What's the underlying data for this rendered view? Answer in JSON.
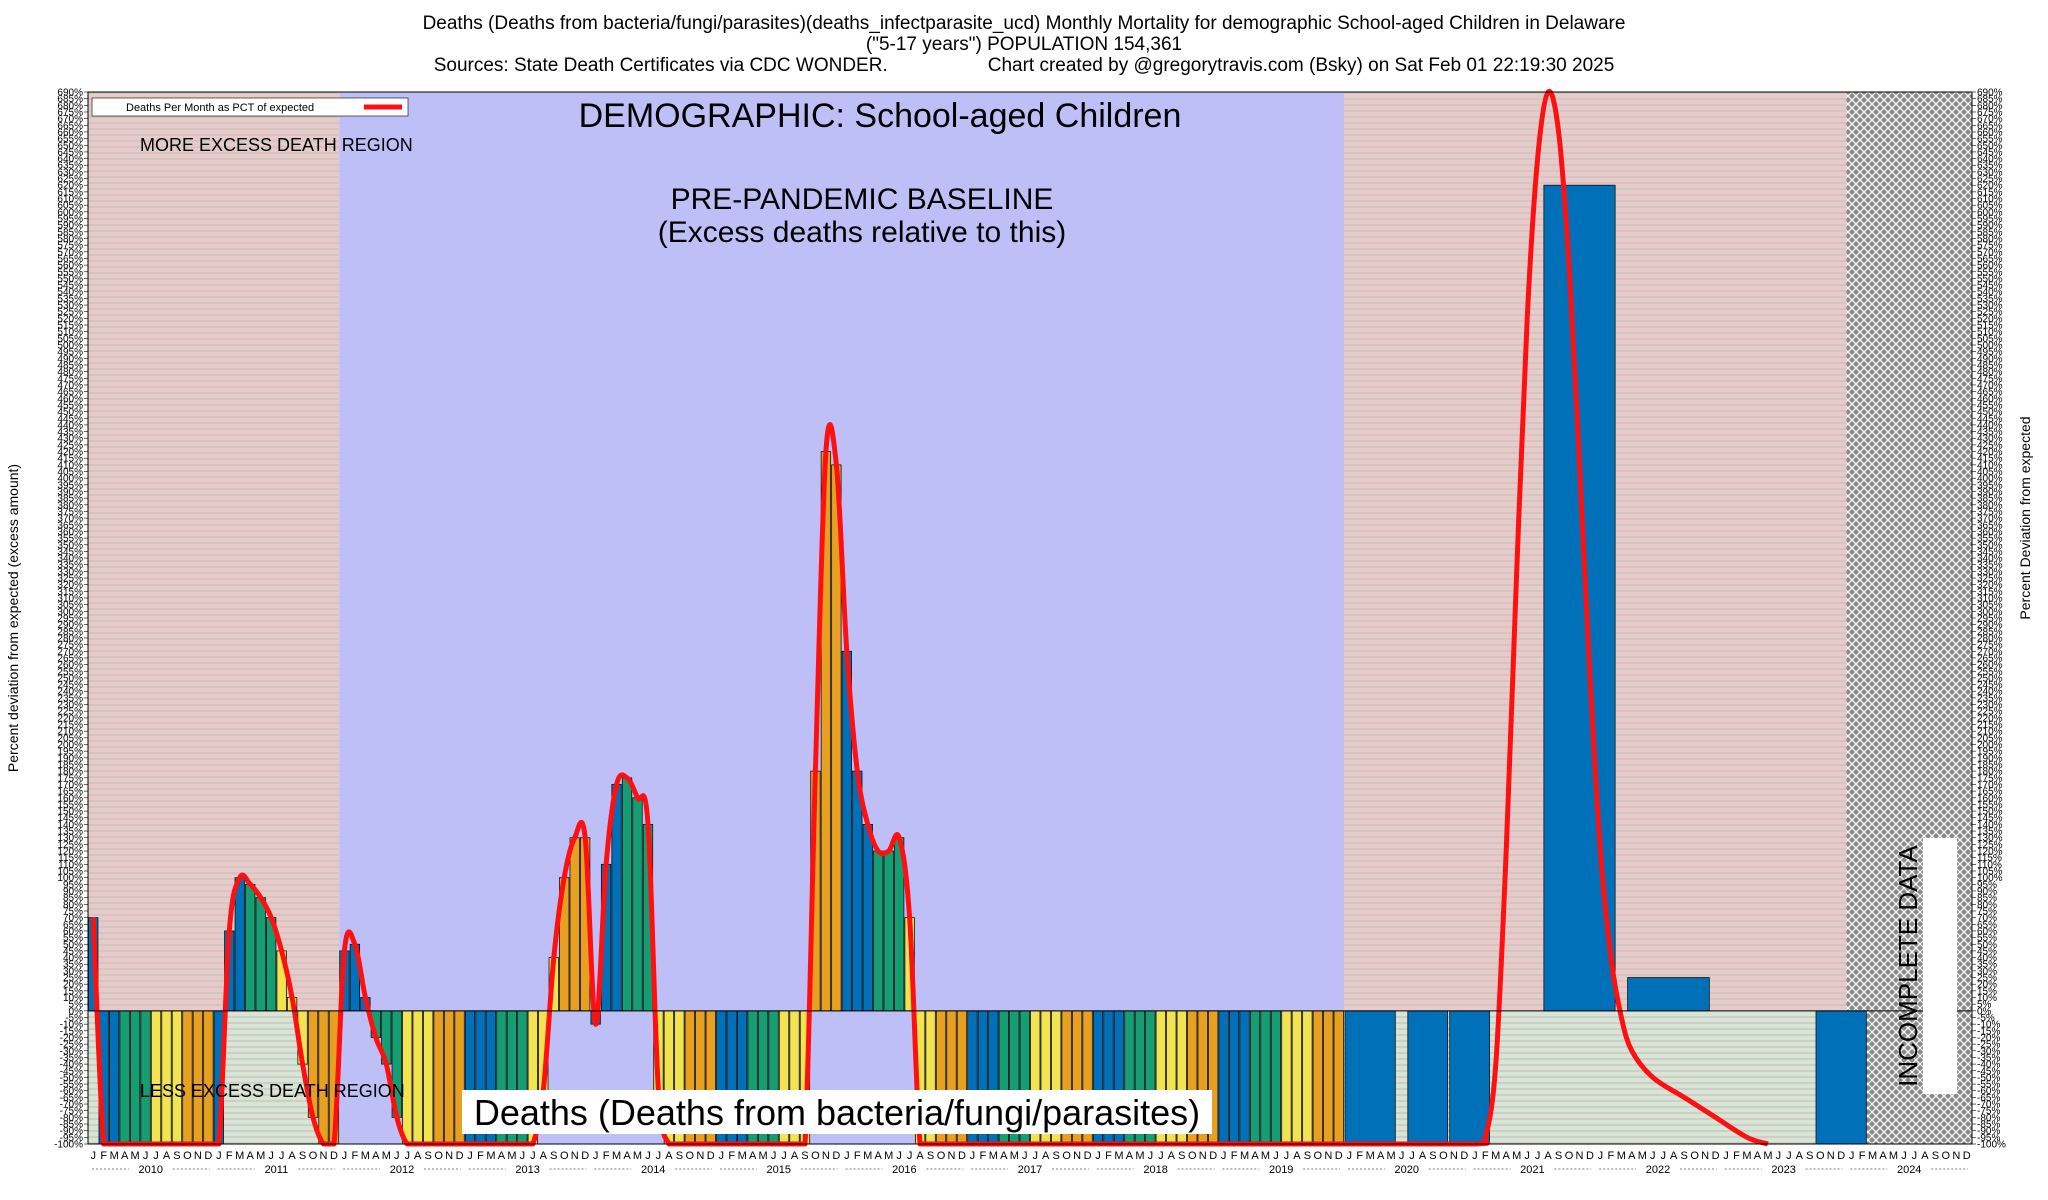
{
  "chart_data": {
    "type": "bar",
    "title_line1": "Deaths (Deaths from bacteria/fungi/parasites)(deaths_infectparasite_ucd) Monthly Mortality for demographic School-aged Children in Delaware",
    "title_line2": "(\"5-17 years\") POPULATION 154,361",
    "sources": "Sources: State Death Certificates via CDC WONDER.",
    "credit": "Chart created by @gregorytravis.com (Bsky) on Sat Feb 01 22:19:30 2025",
    "ylabel_left": "Percent deviation from expected (excess amount)",
    "ylabel_right": "Percent Deviation from expected",
    "legend_label": "Deaths Per Month as PCT of expected",
    "demographic_label": "DEMOGRAPHIC: School-aged Children",
    "more_region_label": "MORE EXCESS DEATH REGION",
    "less_region_label": "LESS EXCESS DEATH REGION",
    "baseline_label_1": "PRE-PANDEMIC BASELINE",
    "baseline_label_2": "(Excess deaths relative to this)",
    "bottom_label": "Deaths (Deaths from bacteria/fungi/parasites)",
    "incomplete_label": "INCOMPLETE DATA",
    "ylim": [
      -100,
      690
    ],
    "y_tick_step": 5,
    "x_start": "2010-01",
    "x_end": "2024-12",
    "month_letters": [
      "J",
      "F",
      "M",
      "A",
      "M",
      "J",
      "J",
      "A",
      "S",
      "O",
      "N",
      "D"
    ],
    "years": [
      "2010",
      "2011",
      "2012",
      "2013",
      "2014",
      "2015",
      "2016",
      "2017",
      "2018",
      "2019",
      "2020",
      "2021",
      "2022",
      "2023",
      "2024"
    ],
    "baseline_period": [
      "2012-01",
      "2019-12"
    ],
    "incomplete_from": "2024-01",
    "colors": {
      "red_line": "#ff1010",
      "baseline_fill": "#bfbff8",
      "more_fill": "#e9c9c9",
      "less_fill": "#cfe3cf",
      "bar_blue": "#0070b8",
      "bar_green": "#159e72",
      "bar_yellow": "#f2e450",
      "bar_orange": "#e8a020"
    },
    "series": [
      {
        "name": "Deaths Per Month as PCT of expected",
        "monthly_2010_2019": [
          70,
          -100,
          -100,
          -100,
          -100,
          -100,
          -100,
          -100,
          -100,
          -100,
          -100,
          -100,
          -100,
          60,
          100,
          95,
          85,
          70,
          45,
          10,
          -40,
          -80,
          -100,
          -100,
          45,
          50,
          10,
          -20,
          -40,
          -80,
          -100,
          -100,
          -100,
          -100,
          -100,
          -100,
          -100,
          -100,
          -100,
          -100,
          -100,
          -100,
          -100,
          -60,
          40,
          100,
          130,
          130,
          -10,
          110,
          170,
          175,
          160,
          140,
          -60,
          -100,
          -100,
          -100,
          -100,
          -100,
          -100,
          -100,
          -100,
          -100,
          -100,
          -100,
          -100,
          -100,
          -100,
          180,
          420,
          410,
          270,
          180,
          140,
          120,
          120,
          130,
          70,
          -100,
          -100,
          -100,
          -100,
          -100,
          -100,
          -100,
          -100,
          -100,
          -100,
          -100,
          -100,
          -100,
          -100,
          -100,
          -100,
          -100,
          -100,
          -100,
          -100,
          -100,
          -100,
          -100,
          -100,
          -100,
          -100,
          -100,
          -100,
          -100,
          -100,
          -100,
          -100,
          -100,
          -100,
          -100,
          -100,
          -100,
          -100,
          -100,
          -100,
          -100
        ],
        "blocks_2020_2024": [
          {
            "start": "2020-01",
            "months": 5,
            "value": -100
          },
          {
            "start": "2020-07",
            "months": 4,
            "value": -100
          },
          {
            "start": "2020-11",
            "months": 4,
            "value": -100
          },
          {
            "start": "2021-08",
            "months": 7,
            "value": 620
          },
          {
            "start": "2022-04",
            "months": 8,
            "value": 25
          },
          {
            "start": "2023-10",
            "months": 5,
            "value": -100
          }
        ]
      }
    ],
    "red_curve_2020_2024": [
      [
        "2020-01",
        -100
      ],
      [
        "2021-01",
        -100
      ],
      [
        "2021-02",
        -95
      ],
      [
        "2021-03",
        -40
      ],
      [
        "2021-04",
        120
      ],
      [
        "2021-05",
        330
      ],
      [
        "2021-06",
        520
      ],
      [
        "2021-07",
        640
      ],
      [
        "2021-08",
        690
      ],
      [
        "2021-09",
        660
      ],
      [
        "2021-10",
        560
      ],
      [
        "2021-11",
        410
      ],
      [
        "2021-12",
        250
      ],
      [
        "2022-01",
        120
      ],
      [
        "2022-02",
        40
      ],
      [
        "2022-03",
        -5
      ],
      [
        "2022-04",
        -30
      ],
      [
        "2022-06",
        -50
      ],
      [
        "2022-09",
        -65
      ],
      [
        "2022-12",
        -80
      ],
      [
        "2023-03",
        -95
      ],
      [
        "2023-05",
        -100
      ]
    ]
  }
}
